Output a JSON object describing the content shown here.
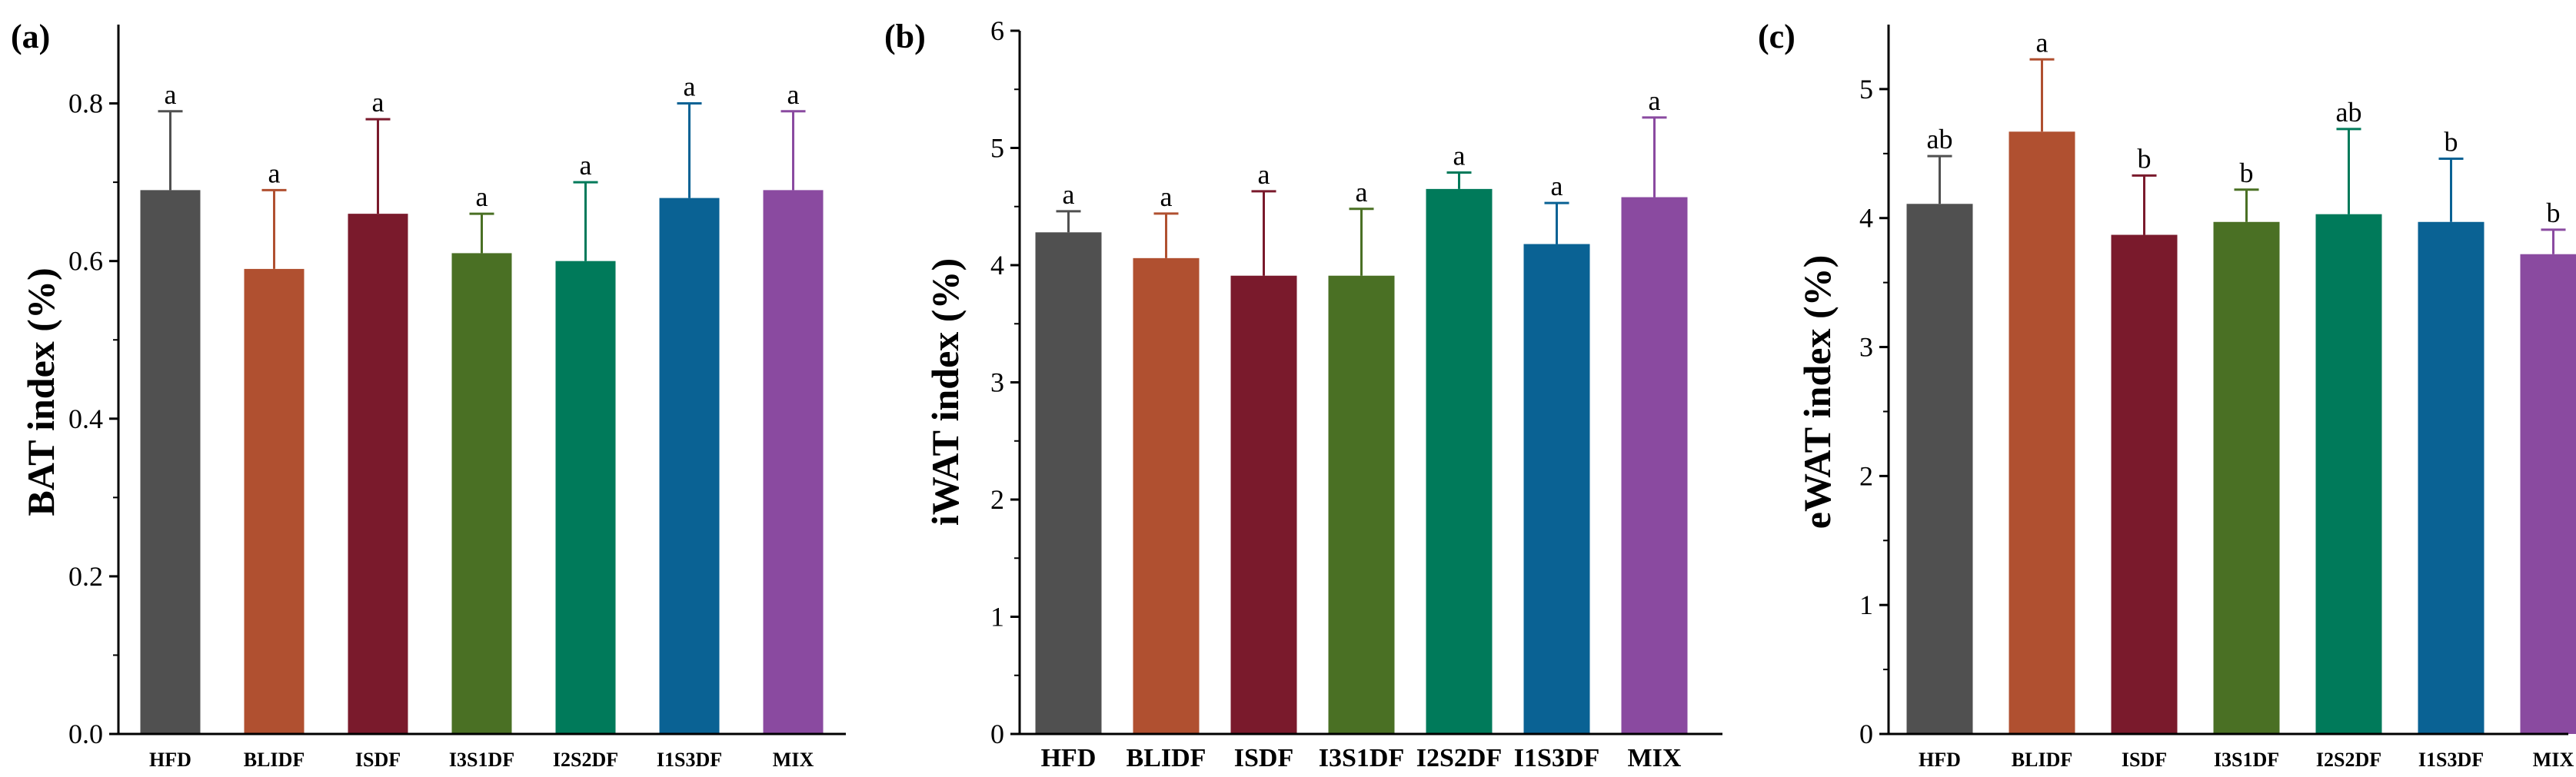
{
  "chart_data": [
    {
      "type": "bar",
      "panel_label": "(a)",
      "ylabel": "BAT index (%)",
      "xlabel": "",
      "ylim": [
        0,
        0.9
      ],
      "yticks": [
        "0.0",
        "0.2",
        "0.4",
        "0.6",
        "0.8"
      ],
      "ytick_values": [
        0,
        0.2,
        0.4,
        0.6,
        0.8
      ],
      "categories": [
        "HFD",
        "BLIDF",
        "ISDF",
        "I3S1DF",
        "I2S2DF",
        "I1S3DF",
        "MIX"
      ],
      "values": [
        0.69,
        0.59,
        0.66,
        0.61,
        0.6,
        0.68,
        0.69
      ],
      "errors": [
        0.1,
        0.1,
        0.12,
        0.05,
        0.1,
        0.12,
        0.1
      ],
      "significance": [
        "a",
        "a",
        "a",
        "a",
        "a",
        "a",
        "a"
      ]
    },
    {
      "type": "bar",
      "panel_label": "(b)",
      "ylabel": "iWAT index (%)",
      "xlabel": "",
      "ylim": [
        0,
        6
      ],
      "yticks": [
        "0",
        "1",
        "2",
        "3",
        "4",
        "5",
        "6"
      ],
      "ytick_values": [
        0,
        1,
        2,
        3,
        4,
        5,
        6
      ],
      "categories": [
        "HFD",
        "BLIDF",
        "ISDF",
        "I3S1DF",
        "I2S2DF",
        "I1S3DF",
        "MIX"
      ],
      "values": [
        4.28,
        4.06,
        3.91,
        3.91,
        4.65,
        4.18,
        4.58
      ],
      "errors": [
        0.18,
        0.38,
        0.72,
        0.57,
        0.14,
        0.35,
        0.68
      ],
      "significance": [
        "a",
        "a",
        "a",
        "a",
        "a",
        "a",
        "a"
      ]
    },
    {
      "type": "bar",
      "panel_label": "(c)",
      "ylabel": "eWAT index (%)",
      "xlabel": "",
      "ylim": [
        0,
        5.5
      ],
      "yticks": [
        "0",
        "1",
        "2",
        "3",
        "4",
        "5"
      ],
      "ytick_values": [
        0,
        1,
        2,
        3,
        4,
        5
      ],
      "categories": [
        "HFD",
        "BLIDF",
        "ISDF",
        "I3S1DF",
        "I2S2DF",
        "I1S3DF",
        "MIX"
      ],
      "values": [
        4.11,
        4.67,
        3.87,
        3.97,
        4.03,
        3.97,
        3.72
      ],
      "errors": [
        0.37,
        0.56,
        0.46,
        0.25,
        0.66,
        0.49,
        0.19
      ],
      "significance": [
        "ab",
        "a",
        "b",
        "b",
        "ab",
        "b",
        "b"
      ]
    }
  ],
  "colors": [
    "#505050",
    "#b05030",
    "#7a1a2c",
    "#4a7024",
    "#007a5a",
    "#0a6294",
    "#8a4aa0"
  ]
}
